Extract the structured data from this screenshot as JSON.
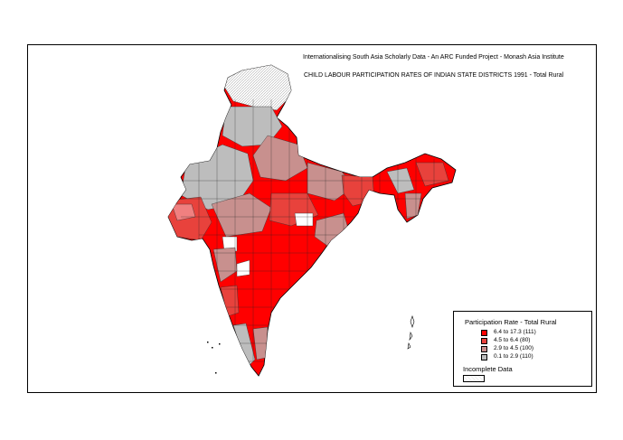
{
  "header": {
    "line1": "Internationalising South Asia Scholarly Data - An ARC Funded Project - Monash Asia Institute",
    "line2": "CHILD LABOUR PARTICIPATION RATES OF INDIAN STATE DISTRICTS 1991 - Total Rural"
  },
  "legend": {
    "title": "Participation Rate - Total Rural",
    "items": [
      {
        "label": "6.4 to 17.3   (111)",
        "color": "#ff0000"
      },
      {
        "label": "4.5 to   6.4     (80)",
        "color": "#e8423c"
      },
      {
        "label": "2.9 to   4.5   (100)",
        "color": "#c8908e"
      },
      {
        "label": "0.1 to   2.9   (110)",
        "color": "#bdbdbd"
      }
    ],
    "incomplete_label": "Incomplete Data"
  },
  "colors": {
    "class1": "#ff0000",
    "class2": "#e8423c",
    "class3": "#c8908e",
    "class4": "#bdbdbd",
    "incomplete": "#f2f2f2"
  }
}
